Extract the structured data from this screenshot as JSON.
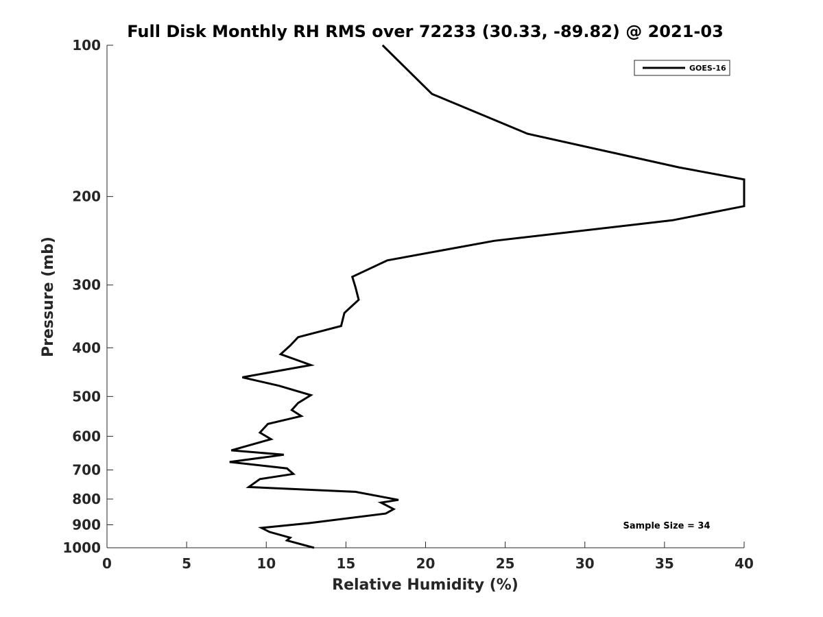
{
  "chart_data": {
    "type": "line",
    "title": "Full Disk Monthly RH RMS over 72233 (30.33, -89.82) @ 2021-03",
    "xlabel": "Relative Humidity (%)",
    "ylabel": "Pressure (mb)",
    "xlim": [
      0,
      40
    ],
    "ylim": [
      100,
      1000
    ],
    "y_scale": "log",
    "y_reversed": true,
    "grid": false,
    "x_ticks": [
      "0",
      "5",
      "10",
      "15",
      "20",
      "25",
      "30",
      "35",
      "40"
    ],
    "y_ticks": [
      "100",
      "200",
      "300",
      "400",
      "500",
      "600",
      "700",
      "800",
      "900",
      "1000"
    ],
    "legend": {
      "position": "top-right",
      "entries": [
        "GOES-16"
      ]
    },
    "annotation": "Sample Size = 34",
    "series": [
      {
        "name": "GOES-16",
        "color": "#000000",
        "points": [
          [
            17.3,
            100
          ],
          [
            20.4,
            125
          ],
          [
            26.4,
            150
          ],
          [
            35.9,
            175
          ],
          [
            40.0,
            185
          ],
          [
            40.0,
            209
          ],
          [
            35.5,
            223
          ],
          [
            24.3,
            245
          ],
          [
            17.6,
            268
          ],
          [
            15.4,
            289
          ],
          [
            15.6,
            303
          ],
          [
            15.8,
            321
          ],
          [
            14.9,
            341
          ],
          [
            14.7,
            362
          ],
          [
            12.0,
            381
          ],
          [
            11.5,
            396
          ],
          [
            10.9,
            412
          ],
          [
            12.8,
            433
          ],
          [
            8.5,
            458
          ],
          [
            10.8,
            476
          ],
          [
            12.8,
            497
          ],
          [
            12.0,
            515
          ],
          [
            11.6,
            532
          ],
          [
            12.2,
            547
          ],
          [
            10.1,
            567
          ],
          [
            9.6,
            590
          ],
          [
            10.3,
            608
          ],
          [
            7.8,
            640
          ],
          [
            11.1,
            653
          ],
          [
            7.7,
            675
          ],
          [
            11.3,
            695
          ],
          [
            11.7,
            713
          ],
          [
            9.6,
            730
          ],
          [
            8.9,
            757
          ],
          [
            15.6,
            774
          ],
          [
            18.3,
            803
          ],
          [
            17.2,
            813
          ],
          [
            18.0,
            838
          ],
          [
            17.5,
            855
          ],
          [
            12.7,
            893
          ],
          [
            9.7,
            913
          ],
          [
            10.2,
            930
          ],
          [
            11.5,
            955
          ],
          [
            11.3,
            967
          ],
          [
            13.0,
            1000
          ]
        ]
      }
    ]
  }
}
